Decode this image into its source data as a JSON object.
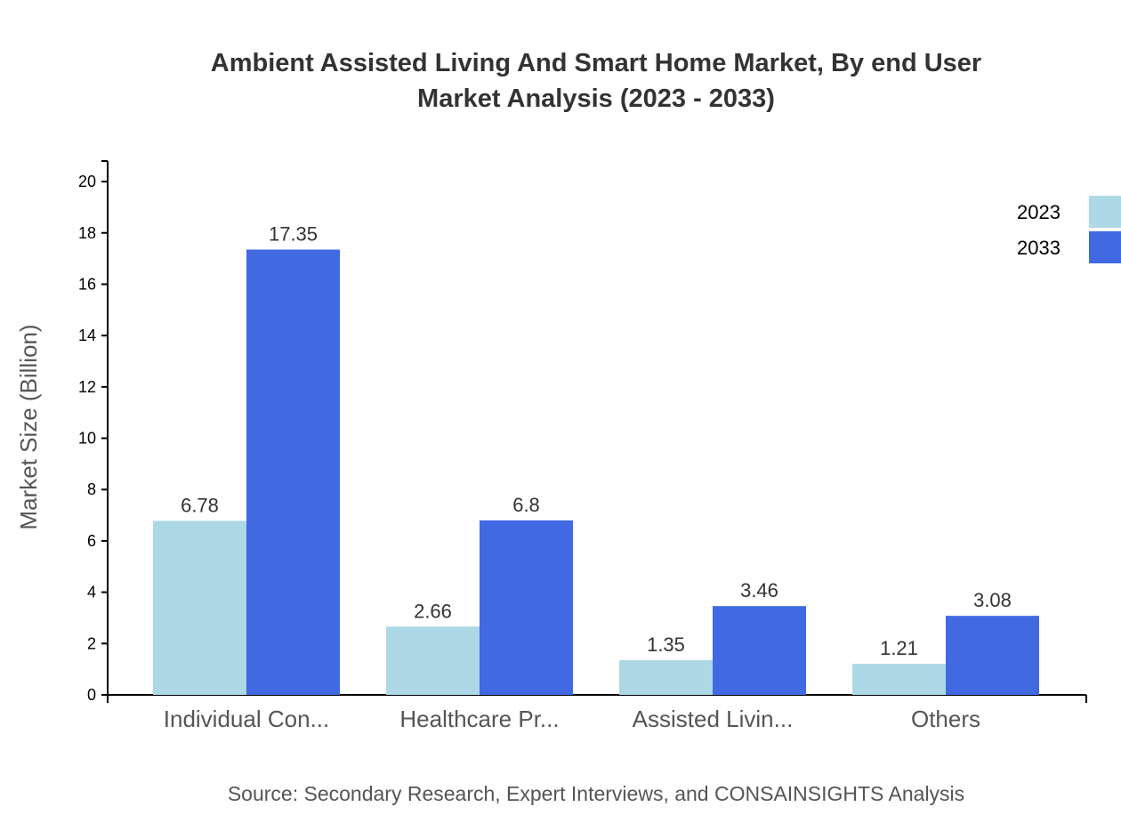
{
  "chart_data": {
    "type": "bar",
    "title": "Ambient Assisted Living And Smart Home Market, By end User",
    "subtitle": "Market Analysis (2023 - 2033)",
    "xlabel": "",
    "ylabel": "Market Size (Billion)",
    "ylim": [
      0,
      20.8
    ],
    "yticks": [
      0,
      2,
      4,
      6,
      8,
      10,
      12,
      14,
      16,
      18,
      20
    ],
    "categories": [
      "Individual Con...",
      "Healthcare Pr...",
      "Assisted Livin...",
      "Others"
    ],
    "series": [
      {
        "name": "2023",
        "color": "#add8e6",
        "values": [
          6.78,
          2.66,
          1.35,
          1.21
        ]
      },
      {
        "name": "2033",
        "color": "#4169e1",
        "values": [
          17.35,
          6.8,
          3.46,
          3.08
        ]
      }
    ],
    "legend_position": "top-right",
    "grid": false,
    "source": "Source: Secondary Research, Expert Interviews, and CONSAINSIGHTS Analysis"
  }
}
